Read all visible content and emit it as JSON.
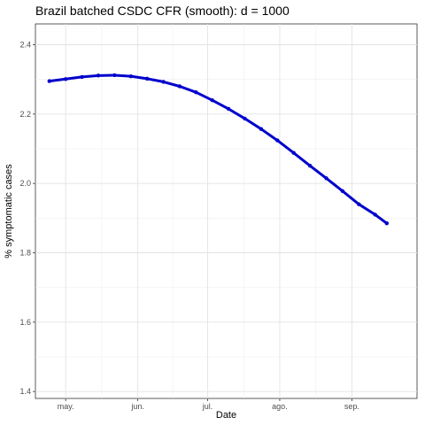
{
  "chart_data": {
    "type": "line",
    "title": "Brazil batched CSDC CFR (smooth): d = 1000",
    "xlabel": "Date",
    "ylabel": "% symptomatic cases",
    "x_ticks": [
      {
        "date": "2020-05-01",
        "label": "may."
      },
      {
        "date": "2020-06-01",
        "label": "jun."
      },
      {
        "date": "2020-07-01",
        "label": "jul."
      },
      {
        "date": "2020-08-01",
        "label": "ago."
      },
      {
        "date": "2020-09-01",
        "label": "sep."
      }
    ],
    "y_ticks": [
      1.4,
      1.6,
      1.8,
      2.0,
      2.2,
      2.4
    ],
    "xlim": [
      "2020-04-18",
      "2020-09-29"
    ],
    "ylim": [
      1.38,
      2.46
    ],
    "grid": true,
    "series": [
      {
        "color": "#0000cc",
        "points": [
          {
            "x": "2020-04-24",
            "y": 2.295
          },
          {
            "x": "2020-05-01",
            "y": 2.301
          },
          {
            "x": "2020-05-08",
            "y": 2.307
          },
          {
            "x": "2020-05-15",
            "y": 2.311
          },
          {
            "x": "2020-05-22",
            "y": 2.312
          },
          {
            "x": "2020-05-29",
            "y": 2.309
          },
          {
            "x": "2020-06-05",
            "y": 2.302
          },
          {
            "x": "2020-06-12",
            "y": 2.293
          },
          {
            "x": "2020-06-19",
            "y": 2.28
          },
          {
            "x": "2020-06-26",
            "y": 2.263
          },
          {
            "x": "2020-07-03",
            "y": 2.24
          },
          {
            "x": "2020-07-10",
            "y": 2.215
          },
          {
            "x": "2020-07-17",
            "y": 2.187
          },
          {
            "x": "2020-07-24",
            "y": 2.157
          },
          {
            "x": "2020-07-31",
            "y": 2.124
          },
          {
            "x": "2020-08-07",
            "y": 2.088
          },
          {
            "x": "2020-08-14",
            "y": 2.051
          },
          {
            "x": "2020-08-21",
            "y": 2.015
          },
          {
            "x": "2020-08-28",
            "y": 1.978
          },
          {
            "x": "2020-09-04",
            "y": 1.94
          },
          {
            "x": "2020-09-11",
            "y": 1.91
          },
          {
            "x": "2020-09-16",
            "y": 1.885
          }
        ]
      }
    ]
  }
}
